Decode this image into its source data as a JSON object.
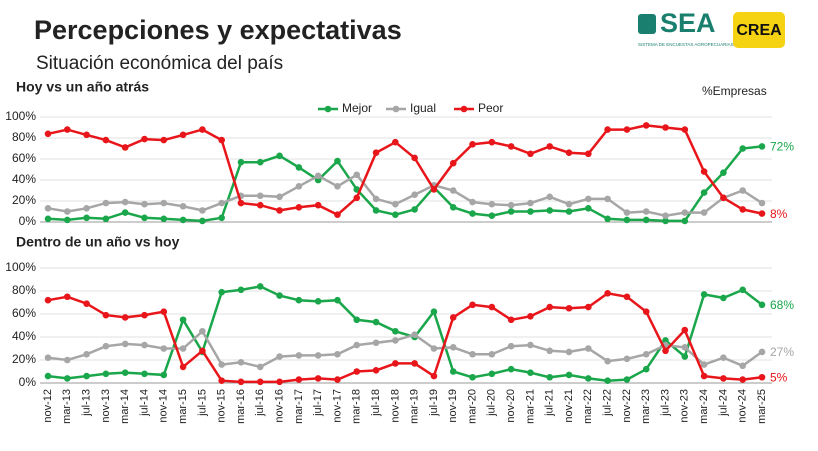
{
  "header": {
    "title": "Percepciones y expectativas",
    "subtitle": "Situación económica del país",
    "logo_sea": "SEA",
    "logo_sea_caption": "SISTEMA DE ENCUESTAS AGROPECUARIAS",
    "logo_crea": "CREA"
  },
  "chart_data": [
    {
      "type": "line",
      "title": "Hoy vs un año atrás",
      "unit_label": "%Empresas",
      "legend": "top",
      "ylim": [
        0,
        100
      ],
      "yticks": [
        {
          "value": 0,
          "label": "0%"
        },
        {
          "value": 20,
          "label": "20%"
        },
        {
          "value": 40,
          "label": "40%"
        },
        {
          "value": 60,
          "label": "60%"
        },
        {
          "value": 80,
          "label": "80%"
        },
        {
          "value": 100,
          "label": "100%"
        }
      ],
      "grid": true,
      "series": [
        {
          "name": "Mejor",
          "color": "#1aa64a",
          "values": [
            3,
            2,
            4,
            3,
            9,
            4,
            3,
            2,
            1,
            4,
            57,
            57,
            63,
            52,
            40,
            58,
            31,
            11,
            7,
            12,
            33,
            14,
            8,
            6,
            10,
            10,
            11,
            10,
            13,
            3,
            2,
            2,
            1,
            1,
            28,
            47,
            70,
            72
          ],
          "value_labels": [
            null,
            null,
            null,
            null,
            null,
            null,
            null,
            null,
            null,
            null,
            null,
            null,
            null,
            null,
            null,
            null,
            null,
            null,
            null,
            null,
            null,
            null,
            null,
            null,
            null,
            null,
            null,
            null,
            null,
            null,
            null,
            null,
            null,
            null,
            null,
            null,
            null,
            "72%"
          ]
        },
        {
          "name": "Igual",
          "color": "#a6a6a6",
          "values": [
            13,
            10,
            13,
            18,
            19,
            17,
            18,
            15,
            11,
            18,
            25,
            25,
            24,
            34,
            44,
            34,
            45,
            22,
            17,
            26,
            35,
            30,
            19,
            17,
            16,
            18,
            24,
            17,
            22,
            22,
            9,
            10,
            6,
            9,
            9,
            23,
            30,
            18
          ],
          "value_labels": [
            null,
            null,
            null,
            null,
            null,
            null,
            null,
            null,
            null,
            null,
            null,
            null,
            null,
            null,
            null,
            null,
            null,
            null,
            null,
            null,
            null,
            null,
            null,
            null,
            null,
            null,
            null,
            null,
            null,
            null,
            null,
            null,
            null,
            null,
            null,
            null,
            null,
            null
          ]
        },
        {
          "name": "Peor",
          "color": "#e8161a",
          "values": [
            84,
            88,
            83,
            78,
            71,
            79,
            78,
            83,
            88,
            78,
            18,
            16,
            11,
            14,
            16,
            7,
            23,
            66,
            76,
            61,
            31,
            56,
            74,
            76,
            72,
            65,
            72,
            66,
            65,
            88,
            88,
            92,
            90,
            88,
            48,
            23,
            12,
            8
          ],
          "value_labels": [
            null,
            null,
            null,
            null,
            null,
            null,
            null,
            null,
            null,
            null,
            null,
            null,
            null,
            null,
            null,
            null,
            null,
            null,
            null,
            null,
            null,
            null,
            null,
            null,
            null,
            null,
            null,
            null,
            null,
            null,
            null,
            null,
            null,
            null,
            null,
            null,
            null,
            "8%"
          ]
        }
      ]
    },
    {
      "type": "line",
      "title": "Dentro de un año vs hoy",
      "categories": [
        "nov-12",
        "mar-13",
        "jul-13",
        "nov-13",
        "mar-14",
        "jul-14",
        "nov-14",
        "mar-15",
        "jul-15",
        "nov-15",
        "mar-16",
        "jul-16",
        "nov-16",
        "mar-17",
        "jul-17",
        "nov-17",
        "mar-18",
        "jul-18",
        "nov-18",
        "mar-19",
        "jul-19",
        "nov-19",
        "mar-20",
        "jul-20",
        "nov-20",
        "mar-21",
        "jul-21",
        "nov-21",
        "mar-22",
        "jul-22",
        "nov-22",
        "mar-23",
        "jul-23",
        "nov-23",
        "mar-24",
        "jul-24",
        "nov-24",
        "mar-25"
      ],
      "ylim": [
        0,
        100
      ],
      "yticks": [
        {
          "value": 0,
          "label": "0%"
        },
        {
          "value": 20,
          "label": "20%"
        },
        {
          "value": 40,
          "label": "40%"
        },
        {
          "value": 60,
          "label": "60%"
        },
        {
          "value": 80,
          "label": "80%"
        },
        {
          "value": 100,
          "label": "100%"
        }
      ],
      "grid": true,
      "series": [
        {
          "color": "#1aa64a",
          "values": [
            6,
            4,
            6,
            8,
            9,
            8,
            7,
            55,
            27,
            79,
            81,
            84,
            76,
            72,
            71,
            72,
            55,
            53,
            45,
            40,
            62,
            10,
            5,
            8,
            12,
            9,
            5,
            7,
            4,
            2,
            3,
            12,
            37,
            23,
            77,
            74,
            81,
            68
          ],
          "value_labels": [
            null,
            null,
            null,
            null,
            null,
            null,
            null,
            null,
            null,
            null,
            null,
            null,
            null,
            null,
            null,
            null,
            null,
            null,
            null,
            null,
            null,
            null,
            null,
            null,
            null,
            null,
            null,
            null,
            null,
            null,
            null,
            null,
            null,
            null,
            null,
            null,
            null,
            "68%"
          ]
        },
        {
          "color": "#a6a6a6",
          "values": [
            22,
            20,
            25,
            32,
            34,
            33,
            30,
            30,
            45,
            16,
            18,
            14,
            23,
            24,
            24,
            25,
            33,
            35,
            37,
            42,
            30,
            31,
            25,
            25,
            32,
            33,
            28,
            27,
            30,
            19,
            21,
            25,
            33,
            31,
            16,
            22,
            15,
            27
          ],
          "value_labels": [
            null,
            null,
            null,
            null,
            null,
            null,
            null,
            null,
            null,
            null,
            null,
            null,
            null,
            null,
            null,
            null,
            null,
            null,
            null,
            null,
            null,
            null,
            null,
            null,
            null,
            null,
            null,
            null,
            null,
            null,
            null,
            null,
            null,
            null,
            null,
            null,
            null,
            "27%"
          ]
        },
        {
          "color": "#e8161a",
          "values": [
            72,
            75,
            69,
            59,
            57,
            59,
            62,
            14,
            28,
            2,
            1,
            1,
            1,
            3,
            4,
            3,
            10,
            11,
            17,
            17,
            6,
            57,
            68,
            66,
            55,
            58,
            66,
            65,
            66,
            78,
            75,
            62,
            28,
            46,
            6,
            4,
            3,
            5
          ],
          "value_labels": [
            null,
            null,
            null,
            null,
            null,
            null,
            null,
            null,
            null,
            null,
            null,
            null,
            null,
            null,
            null,
            null,
            null,
            null,
            null,
            null,
            null,
            null,
            null,
            null,
            null,
            null,
            null,
            null,
            null,
            null,
            null,
            null,
            null,
            null,
            null,
            null,
            null,
            "5%"
          ]
        }
      ]
    }
  ]
}
